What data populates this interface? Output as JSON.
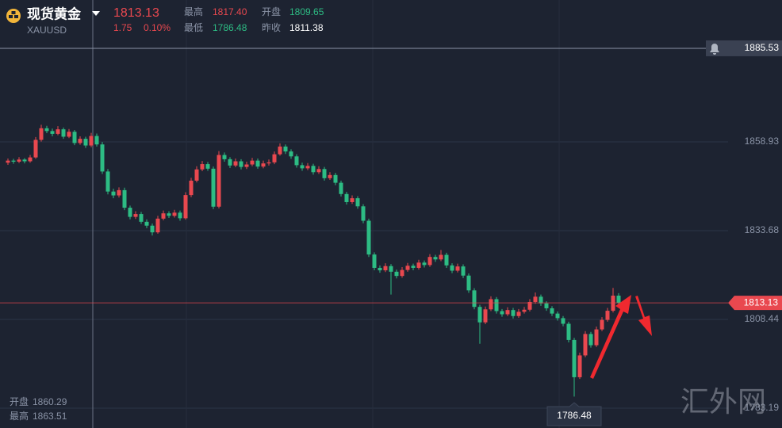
{
  "header": {
    "name": "现货黄金",
    "symbol": "XAUUSD",
    "price": "1813.13",
    "change": "1.75",
    "change_pct": "0.10%",
    "high_label": "最高",
    "high": "1817.40",
    "open_label": "开盘",
    "open": "1809.65",
    "low_label": "最低",
    "low": "1786.48",
    "prev_close_label": "昨收",
    "prev_close": "1811.38"
  },
  "crosshair_info": [
    {
      "label": "开盘",
      "value": "1860.29"
    },
    {
      "label": "最高",
      "value": "1863.51"
    }
  ],
  "watermark": "汇外网",
  "chart_data": {
    "type": "candlestick",
    "up_color": "#e9484f",
    "down_color": "#2dbc84",
    "grid": true,
    "ylim": [
      1777.56,
      1899.27
    ],
    "yticks": [
      1858.93,
      1833.68,
      1808.44,
      1783.19
    ],
    "alert_price": 1885.53,
    "last_price": 1813.13,
    "low_label": 1786.48,
    "candles": [
      [
        1853.0,
        1854.2,
        1852.4,
        1853.6
      ],
      [
        1853.6,
        1854.1,
        1852.7,
        1853.3
      ],
      [
        1853.3,
        1854.6,
        1852.9,
        1853.9
      ],
      [
        1853.9,
        1854.3,
        1852.8,
        1853.4
      ],
      [
        1853.4,
        1855.2,
        1853.0,
        1854.5
      ],
      [
        1854.5,
        1860.3,
        1854.1,
        1859.5
      ],
      [
        1859.5,
        1863.8,
        1859.0,
        1862.8
      ],
      [
        1862.8,
        1863.5,
        1861.4,
        1862.0
      ],
      [
        1862.0,
        1862.7,
        1860.5,
        1861.2
      ],
      [
        1861.2,
        1863.4,
        1860.8,
        1862.5
      ],
      [
        1862.5,
        1863.0,
        1859.8,
        1860.4
      ],
      [
        1860.4,
        1862.6,
        1860.0,
        1861.8
      ],
      [
        1861.8,
        1862.3,
        1858.0,
        1858.6
      ],
      [
        1858.6,
        1860.5,
        1858.1,
        1859.8
      ],
      [
        1859.8,
        1860.4,
        1857.2,
        1857.9
      ],
      [
        1857.9,
        1861.5,
        1857.4,
        1860.6
      ],
      [
        1860.6,
        1861.3,
        1857.6,
        1858.2
      ],
      [
        1858.2,
        1858.9,
        1849.8,
        1850.5
      ],
      [
        1850.5,
        1851.2,
        1844.0,
        1844.8
      ],
      [
        1844.8,
        1845.6,
        1842.9,
        1843.7
      ],
      [
        1843.7,
        1846.0,
        1843.1,
        1845.2
      ],
      [
        1845.2,
        1845.9,
        1839.5,
        1840.2
      ],
      [
        1840.2,
        1840.8,
        1836.9,
        1837.6
      ],
      [
        1837.6,
        1839.2,
        1837.0,
        1838.4
      ],
      [
        1838.4,
        1839.0,
        1835.6,
        1836.2
      ],
      [
        1836.2,
        1836.9,
        1834.4,
        1835.1
      ],
      [
        1835.1,
        1835.7,
        1832.3,
        1833.2
      ],
      [
        1833.2,
        1837.9,
        1832.8,
        1837.1
      ],
      [
        1837.1,
        1839.4,
        1836.6,
        1838.6
      ],
      [
        1838.6,
        1839.2,
        1837.3,
        1837.9
      ],
      [
        1837.9,
        1839.6,
        1837.4,
        1838.8
      ],
      [
        1838.8,
        1839.4,
        1836.5,
        1837.2
      ],
      [
        1837.2,
        1844.6,
        1836.8,
        1843.8
      ],
      [
        1843.8,
        1848.7,
        1843.2,
        1847.9
      ],
      [
        1847.9,
        1852.0,
        1847.4,
        1851.1
      ],
      [
        1851.1,
        1853.5,
        1850.6,
        1852.6
      ],
      [
        1852.6,
        1853.2,
        1850.7,
        1851.3
      ],
      [
        1851.3,
        1851.9,
        1839.8,
        1840.5
      ],
      [
        1840.5,
        1856.3,
        1840.0,
        1855.2
      ],
      [
        1855.2,
        1855.9,
        1853.3,
        1854.0
      ],
      [
        1854.0,
        1854.6,
        1851.5,
        1852.2
      ],
      [
        1852.2,
        1854.2,
        1851.7,
        1853.4
      ],
      [
        1853.4,
        1854.0,
        1851.1,
        1851.8
      ],
      [
        1851.8,
        1853.3,
        1851.2,
        1852.5
      ],
      [
        1852.5,
        1854.4,
        1852.0,
        1853.6
      ],
      [
        1853.6,
        1854.2,
        1851.3,
        1851.9
      ],
      [
        1851.9,
        1853.6,
        1851.4,
        1852.8
      ],
      [
        1852.8,
        1853.9,
        1852.2,
        1853.1
      ],
      [
        1853.1,
        1856.2,
        1852.6,
        1855.4
      ],
      [
        1855.4,
        1858.5,
        1855.0,
        1857.6
      ],
      [
        1857.6,
        1858.2,
        1855.5,
        1856.2
      ],
      [
        1856.2,
        1856.8,
        1854.1,
        1854.8
      ],
      [
        1854.8,
        1855.4,
        1851.6,
        1852.3
      ],
      [
        1852.3,
        1853.0,
        1850.7,
        1851.4
      ],
      [
        1851.4,
        1852.9,
        1850.9,
        1852.1
      ],
      [
        1852.1,
        1852.7,
        1849.6,
        1850.3
      ],
      [
        1850.3,
        1852.0,
        1849.8,
        1851.2
      ],
      [
        1851.2,
        1851.8,
        1847.9,
        1848.6
      ],
      [
        1848.6,
        1850.3,
        1848.1,
        1849.5
      ],
      [
        1849.5,
        1850.1,
        1846.6,
        1847.3
      ],
      [
        1847.3,
        1847.9,
        1843.4,
        1844.1
      ],
      [
        1844.1,
        1844.7,
        1841.1,
        1841.8
      ],
      [
        1841.8,
        1843.7,
        1841.3,
        1842.9
      ],
      [
        1842.9,
        1843.5,
        1839.9,
        1840.6
      ],
      [
        1840.6,
        1841.2,
        1835.8,
        1836.5
      ],
      [
        1836.5,
        1837.1,
        1826.2,
        1826.9
      ],
      [
        1826.9,
        1827.5,
        1822.4,
        1823.1
      ],
      [
        1823.1,
        1823.8,
        1821.7,
        1822.4
      ],
      [
        1822.4,
        1824.4,
        1821.9,
        1823.6
      ],
      [
        1823.6,
        1824.2,
        1815.5,
        1822.0
      ],
      [
        1822.0,
        1822.6,
        1820.1,
        1820.8
      ],
      [
        1820.8,
        1823.3,
        1820.3,
        1822.5
      ],
      [
        1822.5,
        1824.5,
        1822.0,
        1823.7
      ],
      [
        1823.7,
        1824.3,
        1822.4,
        1823.1
      ],
      [
        1823.1,
        1825.4,
        1822.6,
        1824.6
      ],
      [
        1824.6,
        1825.2,
        1823.2,
        1823.9
      ],
      [
        1823.9,
        1827.0,
        1823.4,
        1826.2
      ],
      [
        1826.2,
        1826.8,
        1824.8,
        1825.5
      ],
      [
        1825.5,
        1828.2,
        1825.0,
        1826.8
      ],
      [
        1826.8,
        1827.4,
        1823.1,
        1823.8
      ],
      [
        1823.8,
        1824.4,
        1821.6,
        1822.3
      ],
      [
        1822.3,
        1824.3,
        1821.8,
        1823.5
      ],
      [
        1823.5,
        1824.1,
        1820.2,
        1820.9
      ],
      [
        1820.9,
        1821.5,
        1816.0,
        1816.7
      ],
      [
        1816.7,
        1817.3,
        1811.3,
        1812.0
      ],
      [
        1812.0,
        1812.6,
        1801.5,
        1807.6
      ],
      [
        1807.6,
        1812.1,
        1807.1,
        1811.3
      ],
      [
        1811.3,
        1815.0,
        1810.8,
        1814.2
      ],
      [
        1814.2,
        1814.8,
        1810.1,
        1810.8
      ],
      [
        1810.8,
        1811.4,
        1809.2,
        1809.9
      ],
      [
        1809.9,
        1811.9,
        1809.4,
        1811.1
      ],
      [
        1811.1,
        1811.7,
        1808.7,
        1809.4
      ],
      [
        1809.4,
        1811.4,
        1808.9,
        1810.6
      ],
      [
        1810.6,
        1812.0,
        1810.1,
        1811.2
      ],
      [
        1811.2,
        1814.2,
        1810.7,
        1813.4
      ],
      [
        1813.4,
        1816.1,
        1812.9,
        1814.9
      ],
      [
        1814.9,
        1815.5,
        1812.3,
        1813.0
      ],
      [
        1813.0,
        1813.6,
        1810.9,
        1811.6
      ],
      [
        1811.6,
        1812.2,
        1809.4,
        1810.1
      ],
      [
        1810.1,
        1810.7,
        1808.1,
        1808.8
      ],
      [
        1808.8,
        1809.4,
        1806.5,
        1807.2
      ],
      [
        1807.2,
        1807.8,
        1801.9,
        1802.6
      ],
      [
        1802.6,
        1803.2,
        1786.48,
        1792.0
      ],
      [
        1792.0,
        1799.0,
        1791.5,
        1798.2
      ],
      [
        1798.2,
        1805.1,
        1797.7,
        1804.3
      ],
      [
        1804.3,
        1804.9,
        1800.4,
        1801.1
      ],
      [
        1801.1,
        1806.4,
        1800.6,
        1805.6
      ],
      [
        1805.6,
        1809.1,
        1805.1,
        1808.3
      ],
      [
        1808.3,
        1811.7,
        1807.8,
        1810.9
      ],
      [
        1810.9,
        1817.4,
        1810.4,
        1815.2
      ],
      [
        1815.2,
        1815.9,
        1812.5,
        1813.13
      ]
    ]
  }
}
